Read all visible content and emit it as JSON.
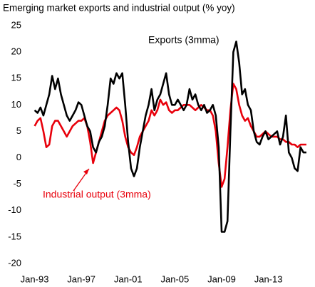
{
  "chart_data": {
    "type": "line",
    "title": "Emerging market exports and industrial output (% yoy)",
    "x": [
      1993,
      1993.25,
      1993.5,
      1993.75,
      1994,
      1994.25,
      1994.5,
      1994.75,
      1995,
      1995.25,
      1995.5,
      1995.75,
      1996,
      1996.25,
      1996.5,
      1996.75,
      1997,
      1997.25,
      1997.5,
      1997.75,
      1998,
      1998.25,
      1998.5,
      1998.75,
      1999,
      1999.25,
      1999.5,
      1999.75,
      2000,
      2000.25,
      2000.5,
      2000.75,
      2001,
      2001.25,
      2001.5,
      2001.75,
      2002,
      2002.25,
      2002.5,
      2002.75,
      2003,
      2003.25,
      2003.5,
      2003.75,
      2004,
      2004.25,
      2004.5,
      2004.75,
      2005,
      2005.25,
      2005.5,
      2005.75,
      2006,
      2006.25,
      2006.5,
      2006.75,
      2007,
      2007.25,
      2007.5,
      2007.75,
      2008,
      2008.25,
      2008.5,
      2008.75,
      2009,
      2009.25,
      2009.5,
      2009.75,
      2010,
      2010.25,
      2010.5,
      2010.75,
      2011,
      2011.25,
      2011.5,
      2011.75,
      2012,
      2012.25,
      2012.5,
      2012.75,
      2013,
      2013.25,
      2013.5,
      2013.75,
      2014,
      2014.25,
      2014.5,
      2014.75,
      2015,
      2015.25,
      2015.5,
      2015.75,
      2016,
      2016.25
    ],
    "series": [
      {
        "name": "Exports (3mma)",
        "color": "#000000",
        "values": [
          9,
          8.5,
          9.5,
          8,
          10,
          12,
          15.5,
          13,
          15,
          12,
          10,
          8,
          7,
          8,
          9,
          10.5,
          10,
          8,
          6,
          5,
          2,
          1,
          3,
          4,
          6,
          10,
          15,
          14,
          16,
          15,
          16,
          10,
          3,
          -2,
          -3.5,
          -2,
          2,
          5,
          8,
          10,
          13,
          9,
          11,
          12,
          14,
          16,
          12,
          10,
          10,
          11,
          10,
          9,
          10,
          13,
          11,
          12,
          10,
          9,
          10,
          8.5,
          9,
          10,
          8,
          2,
          -14,
          -14,
          -12,
          5,
          20,
          22,
          18,
          12,
          13,
          10,
          9,
          5,
          3,
          2.5,
          4,
          5,
          3.5,
          4,
          4.5,
          5,
          2.5,
          4,
          8,
          1,
          0,
          -2,
          -2.5,
          2,
          1,
          1
        ]
      },
      {
        "name": "Industrial output (3mma)",
        "color": "#e8000b",
        "values": [
          6,
          7,
          7.5,
          5,
          2,
          2.5,
          6,
          7,
          7,
          6,
          5,
          4,
          5,
          6,
          6.5,
          7,
          7,
          7.5,
          6,
          3,
          -1,
          1,
          3,
          5,
          7,
          8,
          8.5,
          9,
          9.5,
          9,
          7,
          4,
          2,
          1,
          0.5,
          2,
          4,
          5,
          6,
          7,
          9,
          8,
          9,
          11,
          10,
          10.5,
          9,
          8.5,
          9,
          9,
          9.5,
          10,
          10,
          10,
          9.5,
          9,
          9.5,
          10,
          9.5,
          9,
          9,
          8,
          5,
          -1,
          -5.5,
          -4,
          2,
          9,
          14,
          13,
          10,
          8,
          7,
          7.5,
          6,
          5,
          4,
          4,
          4.5,
          5,
          4.5,
          4,
          4,
          4,
          3.5,
          3.5,
          3,
          3,
          2.5,
          2.5,
          2,
          2.5,
          2.5,
          2.5
        ]
      }
    ],
    "xlim": [
      1992.6,
      2016.5
    ],
    "xticks": [
      {
        "value": 1993,
        "label": "Jan-93"
      },
      {
        "value": 1997,
        "label": "Jan-97"
      },
      {
        "value": 2001,
        "label": "Jan-01"
      },
      {
        "value": 2005,
        "label": "Jan-05"
      },
      {
        "value": 2009,
        "label": "Jan-09"
      },
      {
        "value": 2013,
        "label": "Jan-13"
      }
    ],
    "ylim": [
      -20,
      25
    ],
    "yticks": [
      -20,
      -15,
      -10,
      -5,
      0,
      5,
      10,
      15,
      20,
      25
    ],
    "grid": false
  }
}
